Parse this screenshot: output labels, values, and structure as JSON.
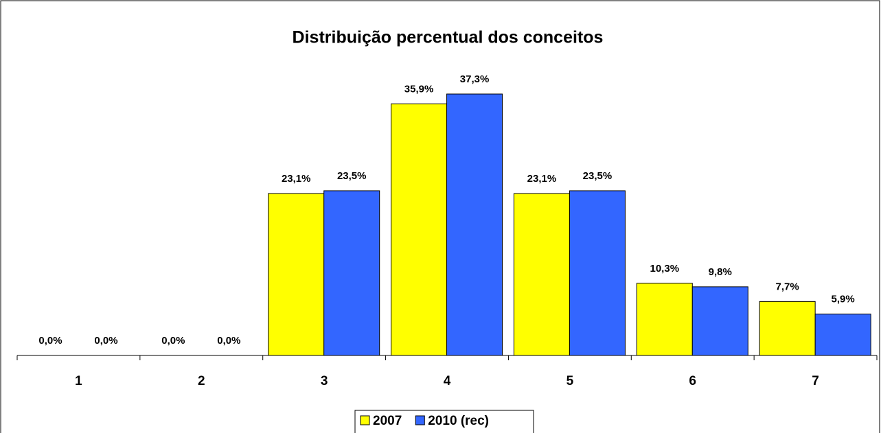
{
  "chart_data": {
    "type": "bar",
    "title": "Distribuição percentual dos conceitos",
    "categories": [
      "1",
      "2",
      "3",
      "4",
      "5",
      "6",
      "7"
    ],
    "series": [
      {
        "name": "2007",
        "color": "#ffff00",
        "values": [
          0,
          0,
          23.1,
          35.9,
          23.1,
          10.3,
          7.7
        ],
        "value_labels": [
          "0,0%",
          "0,0%",
          "23,1%",
          "35,9%",
          "23,1%",
          "10,3%",
          "7,7%"
        ]
      },
      {
        "name": "2010 (rec)",
        "color": "#3366ff",
        "values": [
          0,
          0,
          23.5,
          37.3,
          23.5,
          9.8,
          5.9
        ],
        "value_labels": [
          "0,0%",
          "0,0%",
          "23,5%",
          "37,3%",
          "23,5%",
          "9,8%",
          "5,9%"
        ]
      }
    ],
    "legend": "bottom"
  }
}
